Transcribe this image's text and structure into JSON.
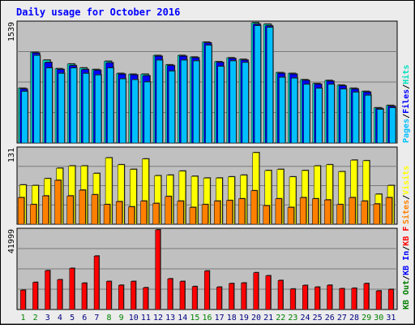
{
  "title": "Daily usage for October 2016",
  "colors": {
    "frame_bg": "#ececec",
    "plot_bg": "#c0c0c0",
    "title": "#0000ff",
    "hits": "#00e0c0",
    "files": "#0000ff",
    "pages": "#00bfff",
    "visits": "#ffff00",
    "sites": "#ff8000",
    "kbin": "#0000ff",
    "kbout": "#008000",
    "kbf": "#ff0000",
    "weekend_day": "#008000",
    "weekday": "#000080"
  },
  "chart_data": {
    "type": "bar",
    "title": "Daily usage for October 2016",
    "days": [
      "1",
      "2",
      "3",
      "4",
      "5",
      "6",
      "7",
      "8",
      "9",
      "10",
      "11",
      "12",
      "13",
      "14",
      "15",
      "16",
      "17",
      "18",
      "19",
      "20",
      "21",
      "22",
      "23",
      "24",
      "25",
      "26",
      "27",
      "28",
      "29",
      "30",
      "31"
    ],
    "weekend_days": [
      "1",
      "2",
      "8",
      "9",
      "15",
      "16",
      "22",
      "23",
      "29",
      "30"
    ],
    "panels": [
      {
        "id": "hits",
        "scale_label": "1539",
        "ymax": 1539,
        "legend": [
          "Hits",
          "Files",
          "Pages"
        ],
        "legend_separator": "/",
        "series": [
          {
            "name": "Hits",
            "values": [
              700,
              1160,
              1060,
              950,
              1010,
              960,
              940,
              1045,
              890,
              880,
              880,
              1120,
              1000,
              1120,
              1100,
              1290,
              1040,
              1090,
              1070,
              1539,
              1520,
              900,
              890,
              810,
              760,
              800,
              740,
              700,
              660,
              450,
              480
            ]
          },
          {
            "name": "Files",
            "values": [
              690,
              1150,
              1030,
              940,
              990,
              940,
              930,
              1025,
              880,
              870,
              860,
              1110,
              990,
              1110,
              1090,
              1280,
              1030,
              1080,
              1060,
              1520,
              1500,
              890,
              880,
              800,
              750,
              790,
              730,
              690,
              650,
              440,
              470
            ]
          },
          {
            "name": "Pages",
            "values": [
              660,
              1120,
              960,
              890,
              960,
              890,
              870,
              960,
              820,
              810,
              780,
              1060,
              920,
              1060,
              1050,
              1250,
              980,
              1050,
              1030,
              1500,
              1480,
              840,
              830,
              750,
              700,
              750,
              690,
              650,
              610,
              430,
              450
            ]
          }
        ]
      },
      {
        "id": "visits",
        "scale_label": "131",
        "ymax": 131,
        "legend": [
          "Visits",
          "Sites"
        ],
        "legend_separator": "/",
        "series": [
          {
            "name": "Visits",
            "values": [
              68,
              67,
              79,
              97,
              101,
              101,
              88,
              115,
              103,
              95,
              113,
              84,
              85,
              92,
              83,
              80,
              80,
              82,
              85,
              124,
              93,
              95,
              82,
              93,
              101,
              103,
              91,
              111,
              110,
              52,
              67
            ]
          },
          {
            "name": "Sites",
            "values": [
              46,
              34,
              49,
              76,
              49,
              59,
              51,
              34,
              39,
              30,
              40,
              36,
              48,
              40,
              29,
              34,
              40,
              41,
              44,
              58,
              32,
              44,
              29,
              46,
              44,
              42,
              34,
              46,
              40,
              35,
              46
            ]
          }
        ]
      },
      {
        "id": "kb",
        "scale_label": "41999",
        "ymax": 41999,
        "legend": [
          "KB F",
          "KB In",
          "KB Out"
        ],
        "legend_separator": "/",
        "series": [
          {
            "name": "KB F",
            "values": [
              10200,
              14300,
              20500,
              15700,
              21700,
              13900,
              28200,
              14800,
              12800,
              14800,
              11500,
              41999,
              16200,
              14800,
              12100,
              20300,
              11800,
              13700,
              14000,
              19400,
              17800,
              15300,
              10800,
              12700,
              11800,
              12800,
              11000,
              11200,
              13700,
              9800,
              10600
            ]
          }
        ]
      }
    ]
  }
}
